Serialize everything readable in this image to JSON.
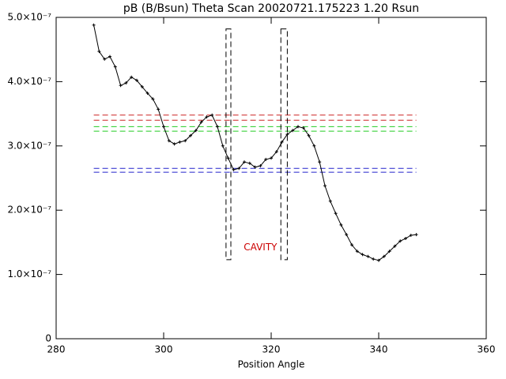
{
  "chart_data": {
    "type": "line",
    "title": "pB (B/Bsun) Theta Scan 20020721.175223 1.20 Rsun",
    "x_label": "Position Angle",
    "xlim": [
      280,
      360
    ],
    "xticks": [
      280,
      300,
      320,
      340,
      360
    ],
    "ylim": [
      0,
      5e-07
    ],
    "yticks": [
      0,
      {
        "value": 1e-07,
        "label": "1.0×10⁻⁷"
      },
      {
        "value": 2e-07,
        "label": "2.0×10⁻⁷"
      },
      {
        "value": 3e-07,
        "label": "3.0×10⁻⁷"
      },
      {
        "value": 4e-07,
        "label": "4.0×10⁻⁷"
      },
      {
        "value": 5e-07,
        "label": "5.0×10⁻⁷"
      }
    ],
    "x": [
      287,
      288,
      289,
      290,
      291,
      292,
      293,
      294,
      295,
      296,
      297,
      298,
      299,
      300,
      301,
      302,
      303,
      304,
      305,
      306,
      307,
      308,
      309,
      310,
      311,
      312,
      313,
      314,
      315,
      316,
      317,
      318,
      319,
      320,
      321,
      322,
      323,
      324,
      325,
      326,
      327,
      328,
      329,
      330,
      331,
      332,
      333,
      334,
      335,
      336,
      337,
      338,
      339,
      340,
      341,
      342,
      343,
      344,
      345,
      346,
      347
    ],
    "series": [
      {
        "color": "#000000",
        "values": [
          4.88e-07,
          4.47e-07,
          4.35e-07,
          4.39e-07,
          4.23e-07,
          3.94e-07,
          3.98e-07,
          4.07e-07,
          4.02e-07,
          3.92e-07,
          3.82e-07,
          3.73e-07,
          3.57e-07,
          3.3e-07,
          3.08e-07,
          3.03e-07,
          3.06e-07,
          3.08e-07,
          3.16e-07,
          3.24e-07,
          3.37e-07,
          3.45e-07,
          3.48e-07,
          3.3e-07,
          3e-07,
          2.81e-07,
          2.63e-07,
          2.65e-07,
          2.75e-07,
          2.73e-07,
          2.67e-07,
          2.69e-07,
          2.79e-07,
          2.81e-07,
          2.91e-07,
          3.06e-07,
          3.18e-07,
          3.24e-07,
          3.3e-07,
          3.28e-07,
          3.16e-07,
          3e-07,
          2.75e-07,
          2.38e-07,
          2.14e-07,
          1.95e-07,
          1.77e-07,
          1.62e-07,
          1.46e-07,
          1.36e-07,
          1.31e-07,
          1.28e-07,
          1.24e-07,
          1.22e-07,
          1.28e-07,
          1.36e-07,
          1.44e-07,
          1.52e-07,
          1.56e-07,
          1.61e-07,
          1.62e-07
        ]
      }
    ],
    "hline_xlim": [
      287,
      347
    ],
    "hlines": [
      {
        "color": "#cc2222",
        "y": 3.48e-07
      },
      {
        "color": "#cc2222",
        "y": 3.4e-07
      },
      {
        "color": "#22cc22",
        "y": 3.3e-07
      },
      {
        "color": "#22cc22",
        "y": 3.23e-07
      },
      {
        "color": "#2222cc",
        "y": 2.65e-07
      },
      {
        "color": "#2222cc",
        "y": 2.59e-07
      }
    ],
    "boxes": [
      {
        "x": [
          311.6,
          312.5
        ],
        "y": [
          1.23e-07,
          4.82e-07
        ]
      },
      {
        "x": [
          321.8,
          323.0
        ],
        "y": [
          1.23e-07,
          4.82e-07
        ]
      }
    ],
    "annotation": {
      "text": "CAVITY",
      "x": 318,
      "y": 1.42e-07,
      "color": "#cc0000"
    }
  }
}
